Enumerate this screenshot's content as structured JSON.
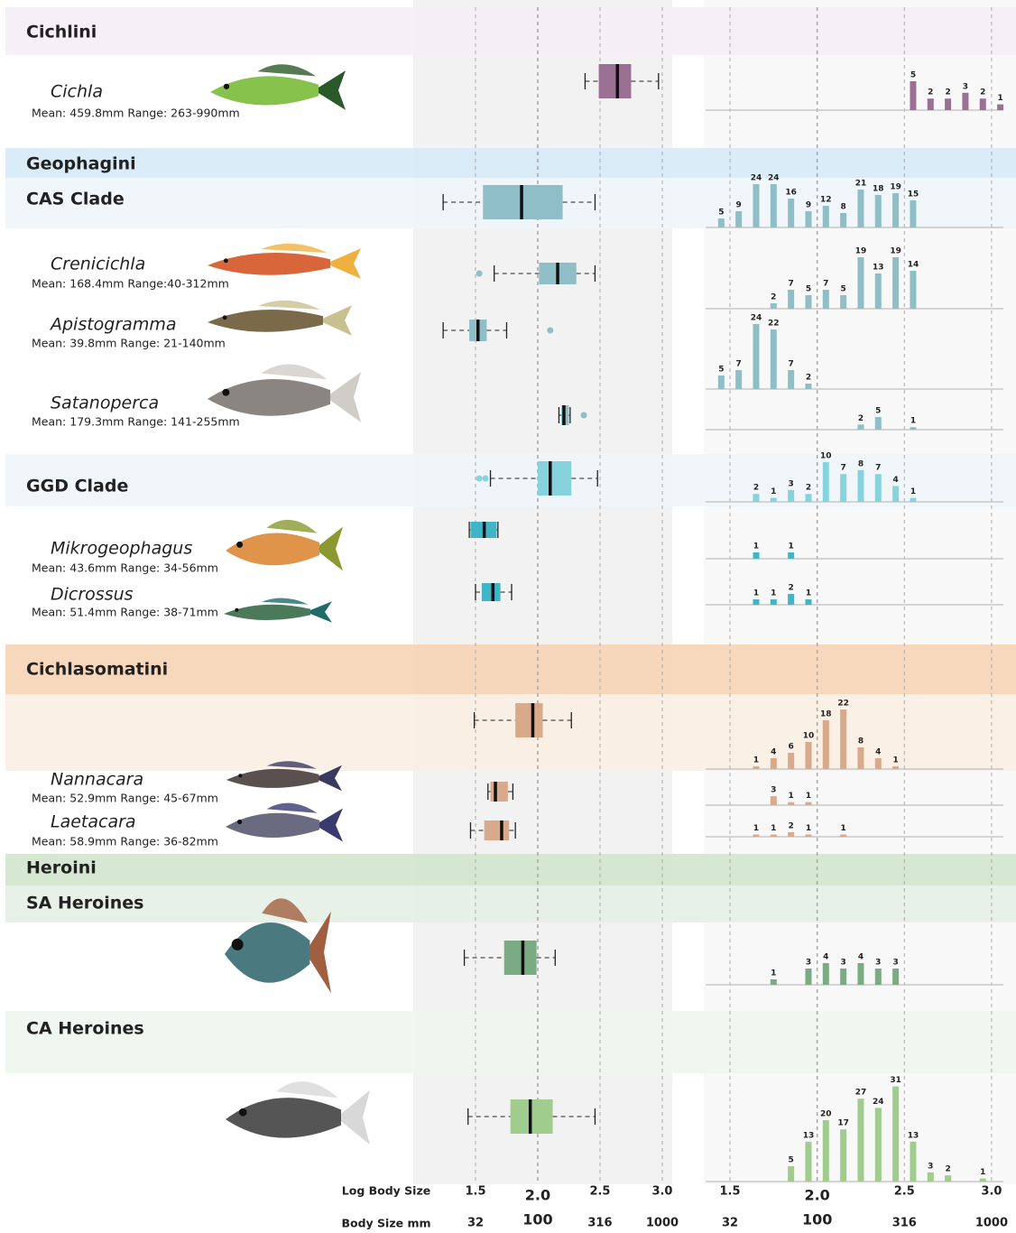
{
  "chart_data": {
    "type": "box",
    "xlabel": "Log Body Size",
    "x2label": "Body Size mm",
    "xlim": [
      1.0,
      3.08
    ],
    "hist_xlim": [
      1.35,
      3.14
    ],
    "xticks": [
      1.5,
      {
        "value": 2,
        "label": "2.0"
      },
      2.5,
      {
        "value": 3,
        "label": "3.0"
      }
    ],
    "x2ticks": [
      {
        "value": 1.5,
        "label": "32"
      },
      {
        "value": 2,
        "label": "100"
      },
      {
        "value": 2.5,
        "label": "316"
      },
      {
        "value": 3,
        "label": "1000"
      }
    ],
    "grid": true,
    "rows": [
      {
        "level": "tribe",
        "label": "Cichlini"
      },
      {
        "level": "genus",
        "label": "Cichla",
        "subtitle": "Mean: 459.8mm Range: 263-990mm",
        "color": "#9b7193",
        "box": {
          "whislo": 2.38,
          "q1": 2.49,
          "med": 2.64,
          "q3": 2.75,
          "whishi": 2.97,
          "fliers": []
        },
        "hist": {
          "x": [
            2.55,
            2.65,
            2.75,
            2.85,
            2.95,
            3.05
          ],
          "counts": [
            5,
            2,
            2,
            3,
            2,
            1
          ]
        }
      },
      {
        "level": "tribe",
        "label": "Geophagini"
      },
      {
        "level": "clade",
        "label": "CAS Clade",
        "color": "#8fbec7",
        "box": {
          "whislo": 1.24,
          "q1": 1.56,
          "med": 1.87,
          "q3": 2.2,
          "whishi": 2.46,
          "fliers": []
        },
        "hist": {
          "x": [
            1.45,
            1.55,
            1.65,
            1.75,
            1.85,
            1.95,
            2.05,
            2.15,
            2.25,
            2.35,
            2.45,
            2.55
          ],
          "counts": [
            5,
            9,
            24,
            24,
            16,
            9,
            12,
            8,
            21,
            18,
            19,
            15
          ]
        }
      },
      {
        "level": "genus",
        "label": "Crenicichla",
        "subtitle": "Mean: 168.4mm Range:40-312mm",
        "color": "#8fbec7",
        "box": {
          "whislo": 1.65,
          "q1": 2.01,
          "med": 2.16,
          "q3": 2.31,
          "whishi": 2.46,
          "fliers": [
            1.53
          ]
        },
        "hist": {
          "x": [
            1.75,
            1.85,
            1.95,
            2.05,
            2.15,
            2.25,
            2.35,
            2.45,
            2.55
          ],
          "counts": [
            2,
            7,
            5,
            7,
            5,
            19,
            13,
            19,
            14
          ]
        }
      },
      {
        "level": "genus",
        "label": "Apistogramma",
        "subtitle": "Mean: 39.8mm Range: 21-140mm",
        "color": "#8fbec7",
        "box": {
          "whislo": 1.24,
          "q1": 1.45,
          "med": 1.52,
          "q3": 1.59,
          "whishi": 1.75,
          "fliers": [
            2.1
          ]
        },
        "hist": {
          "x": [
            1.45,
            1.55,
            1.65,
            1.75,
            1.85,
            1.95
          ],
          "counts": [
            5,
            7,
            24,
            22,
            7,
            2
          ]
        }
      },
      {
        "level": "genus",
        "label": "Satanoperca",
        "subtitle": "Mean: 179.3mm Range: 141-255mm",
        "color": "#8fbec7",
        "box": {
          "whislo": 2.17,
          "q1": 2.19,
          "med": 2.21,
          "q3": 2.25,
          "whishi": 2.26,
          "fliers": [
            2.37
          ]
        },
        "hist": {
          "x": [
            2.25,
            2.35,
            2.55
          ],
          "counts": [
            2,
            5,
            1
          ]
        }
      },
      {
        "level": "clade",
        "label": "GGD Clade",
        "color": "#86d3de",
        "box": {
          "whislo": 1.62,
          "q1": 2.0,
          "med": 2.1,
          "q3": 2.27,
          "whishi": 2.48,
          "fliers": [
            1.53,
            1.58
          ]
        },
        "hist": {
          "x": [
            1.65,
            1.75,
            1.85,
            1.95,
            2.05,
            2.15,
            2.25,
            2.35,
            2.45,
            2.55
          ],
          "counts": [
            2,
            1,
            3,
            2,
            10,
            7,
            8,
            7,
            4,
            1
          ]
        }
      },
      {
        "level": "genus",
        "label": "Mikrogeophagus",
        "subtitle": "Mean: 43.6mm Range: 34-56mm",
        "color": "#3fb5c6",
        "box": {
          "whislo": 1.45,
          "q1": 1.46,
          "med": 1.57,
          "q3": 1.67,
          "whishi": 1.68,
          "fliers": []
        },
        "hist": {
          "x": [
            1.65,
            1.85
          ],
          "counts": [
            1,
            1
          ]
        }
      },
      {
        "level": "genus",
        "label": "Dicrossus",
        "subtitle": "Mean: 51.4mm Range: 38-71mm",
        "color": "#3fb5c6",
        "box": {
          "whislo": 1.5,
          "q1": 1.55,
          "med": 1.64,
          "q3": 1.7,
          "whishi": 1.79,
          "fliers": []
        },
        "hist": {
          "x": [
            1.65,
            1.75,
            1.85,
            1.95
          ],
          "counts": [
            1,
            1,
            2,
            1
          ]
        }
      },
      {
        "level": "tribe",
        "label": "Cichlasomatini"
      },
      {
        "level": "clade",
        "color": "#d9a98c",
        "box": {
          "whislo": 1.49,
          "q1": 1.82,
          "med": 1.96,
          "q3": 2.04,
          "whishi": 2.27,
          "fliers": []
        },
        "hist": {
          "x": [
            1.65,
            1.75,
            1.85,
            1.95,
            2.05,
            2.15,
            2.25,
            2.35,
            2.45
          ],
          "counts": [
            1,
            4,
            6,
            10,
            18,
            22,
            8,
            4,
            1
          ]
        }
      },
      {
        "level": "genus",
        "label": "Nannacara",
        "subtitle": "Mean: 52.9mm Range: 45-67mm",
        "color": "#d9a98c",
        "box": {
          "whislo": 1.6,
          "q1": 1.62,
          "med": 1.66,
          "q3": 1.76,
          "whishi": 1.8,
          "fliers": []
        },
        "hist": {
          "x": [
            1.75,
            1.85,
            1.95
          ],
          "counts": [
            3,
            1,
            1
          ]
        }
      },
      {
        "level": "genus",
        "label": "Laetacara",
        "subtitle": "Mean: 58.9mm Range: 36-82mm",
        "color": "#d9a98c",
        "box": {
          "whislo": 1.46,
          "q1": 1.57,
          "med": 1.71,
          "q3": 1.77,
          "whishi": 1.82,
          "fliers": []
        },
        "hist": {
          "x": [
            1.65,
            1.75,
            1.85,
            1.95,
            2.15
          ],
          "counts": [
            1,
            1,
            2,
            1,
            1
          ]
        }
      },
      {
        "level": "tribe",
        "label": "Heroini"
      },
      {
        "level": "clade",
        "label": "SA Heroines",
        "color": "#7aab82",
        "box": {
          "whislo": 1.41,
          "q1": 1.73,
          "med": 1.88,
          "q3": 1.99,
          "whishi": 2.14,
          "fliers": []
        },
        "hist": {
          "x": [
            1.75,
            1.95,
            2.05,
            2.15,
            2.25,
            2.35,
            2.45
          ],
          "counts": [
            1,
            3,
            4,
            3,
            4,
            3,
            3
          ]
        }
      },
      {
        "level": "clade",
        "label": "CA Heroines",
        "color": "#a0cc8e",
        "box": {
          "whislo": 1.44,
          "q1": 1.78,
          "med": 1.94,
          "q3": 2.12,
          "whishi": 2.46,
          "fliers": []
        },
        "hist": {
          "x": [
            1.85,
            1.95,
            2.05,
            2.15,
            2.25,
            2.35,
            2.45,
            2.55,
            2.65,
            2.75,
            2.95
          ],
          "counts": [
            5,
            13,
            20,
            17,
            27,
            24,
            31,
            13,
            3,
            2,
            1
          ]
        }
      }
    ]
  }
}
